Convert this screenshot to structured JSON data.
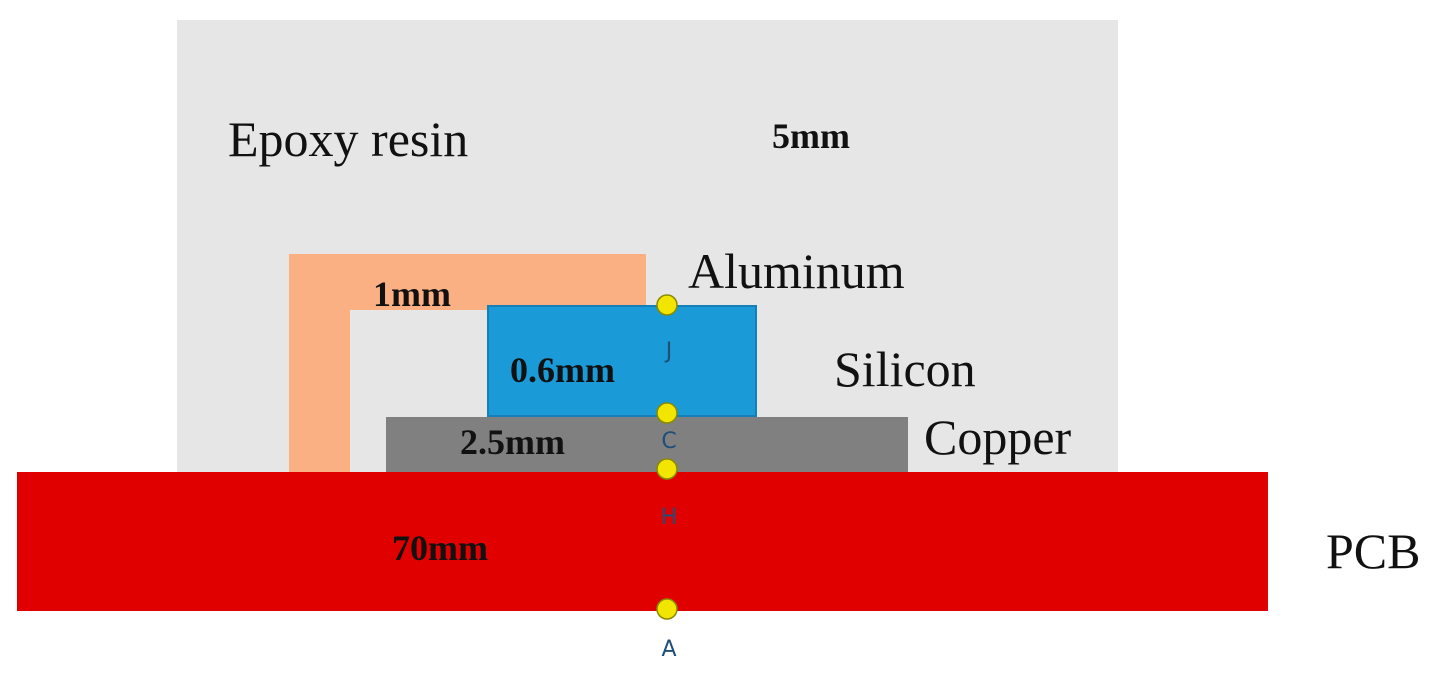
{
  "layers": {
    "epoxy": {
      "name": "Epoxy resin",
      "thickness": "5mm",
      "color": "#e6e6e6"
    },
    "aluminum": {
      "name": "Aluminum",
      "thickness": "1mm",
      "color": "#fbb084"
    },
    "silicon": {
      "name": "Silicon",
      "thickness": "0.6mm",
      "color": "#1a9ad6"
    },
    "copper": {
      "name": "Copper",
      "thickness": "2.5mm",
      "color": "#808080"
    },
    "pcb": {
      "name": "PCB",
      "thickness": "70mm",
      "color": "#e00000"
    }
  },
  "nodes": {
    "color": "#f2e600",
    "j": {
      "label": "J"
    },
    "c": {
      "label": "C"
    },
    "h": {
      "label": "H"
    },
    "a": {
      "label": "A"
    }
  }
}
